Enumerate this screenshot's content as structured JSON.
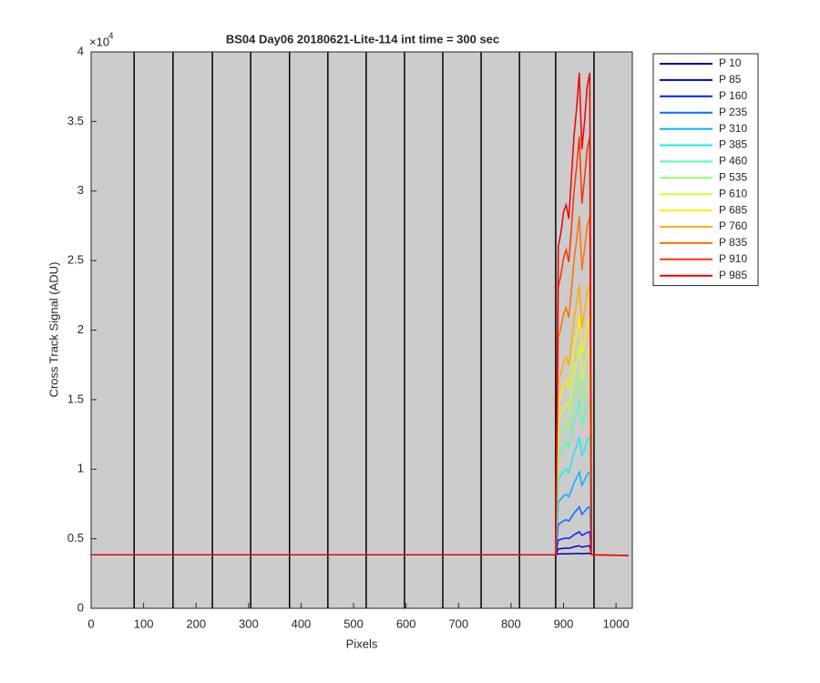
{
  "chart_data": {
    "type": "line",
    "title": "BS04 Day06 20180621-Lite-114 int time = 300 sec",
    "x_label": "Pixels",
    "y_label": "Cross Track Signal (ADU)",
    "y_multiplier": {
      "base": "×10",
      "exponent": "4"
    },
    "axes_color": "#cccccc",
    "legend": "outside-right",
    "xlim": [
      0,
      1031
    ],
    "ylim": [
      0,
      40000
    ],
    "xticks": [
      0,
      100,
      200,
      300,
      400,
      500,
      600,
      700,
      800,
      900,
      1000
    ],
    "yticks": [
      0,
      {
        "value": 5000,
        "label": "0.5"
      },
      {
        "value": 10000,
        "label": "1"
      },
      {
        "value": 15000,
        "label": "1.5"
      },
      {
        "value": 20000,
        "label": "2"
      },
      {
        "value": 25000,
        "label": "2.5"
      },
      {
        "value": 30000,
        "label": "3"
      },
      {
        "value": 35000,
        "label": "3.5"
      },
      {
        "value": 40000,
        "label": "4"
      }
    ],
    "vertical_lines": [
      82,
      156,
      231,
      304,
      378,
      451,
      524,
      597,
      670,
      743,
      816,
      885,
      958
    ],
    "x": [
      0,
      200,
      400,
      600,
      800,
      885,
      890,
      895,
      900,
      905,
      910,
      915,
      920,
      925,
      930,
      935,
      940,
      945,
      950,
      953,
      958,
      1024
    ],
    "series": [
      {
        "name": "P 10",
        "color": "#00008f",
        "values": [
          3850,
          3850,
          3850,
          3850,
          3850,
          3850,
          3910,
          3920,
          3920,
          3920,
          3920,
          3930,
          3940,
          3940,
          3950,
          3930,
          3940,
          3950,
          3950,
          3880,
          3850,
          3800
        ]
      },
      {
        "name": "P 85",
        "color": "#0000cf",
        "values": [
          3850,
          3850,
          3850,
          3850,
          3850,
          3850,
          4270,
          4290,
          4310,
          4330,
          4310,
          4360,
          4420,
          4460,
          4500,
          4400,
          4440,
          4480,
          4500,
          3880,
          3850,
          3800
        ]
      },
      {
        "name": "P 160",
        "color": "#0020ff",
        "values": [
          3850,
          3850,
          3850,
          3850,
          3850,
          3850,
          4910,
          4960,
          5020,
          5060,
          5010,
          5140,
          5290,
          5390,
          5500,
          5240,
          5340,
          5450,
          5500,
          3880,
          3850,
          3800
        ]
      },
      {
        "name": "P 235",
        "color": "#0070ff",
        "values": [
          3850,
          3850,
          3850,
          3850,
          3850,
          3850,
          6060,
          6160,
          6300,
          6370,
          6270,
          6540,
          6850,
          7060,
          7300,
          6750,
          6960,
          7200,
          7300,
          3880,
          3850,
          3800
        ]
      },
      {
        "name": "P 310",
        "color": "#00b0ff",
        "values": [
          3850,
          3850,
          3850,
          3850,
          3850,
          3850,
          7660,
          7840,
          8080,
          8190,
          8020,
          8490,
          9030,
          9380,
          9800,
          8850,
          9210,
          9620,
          9800,
          3880,
          3850,
          3800
        ]
      },
      {
        "name": "P 385",
        "color": "#10f0ef",
        "values": [
          3850,
          3850,
          3850,
          3850,
          3850,
          3850,
          9260,
          9510,
          9850,
          10020,
          9770,
          10440,
          11200,
          11710,
          12300,
          10950,
          11460,
          12050,
          12300,
          3880,
          3850,
          3800
        ]
      },
      {
        "name": "P 460",
        "color": "#50ffaf",
        "values": [
          3850,
          3850,
          3850,
          3850,
          3850,
          3850,
          10920,
          11250,
          11700,
          11920,
          11590,
          12470,
          13460,
          14130,
          14900,
          13130,
          13800,
          14570,
          14900,
          3880,
          3850,
          3800
        ]
      },
      {
        "name": "P 535",
        "color": "#8fff70",
        "values": [
          3850,
          3850,
          3850,
          3850,
          3850,
          3850,
          12140,
          12530,
          13050,
          13300,
          12920,
          13950,
          15120,
          15890,
          16800,
          14730,
          15510,
          16410,
          16800,
          3880,
          3850,
          3800
        ]
      },
      {
        "name": "P 610",
        "color": "#cfff30",
        "values": [
          3850,
          3850,
          3850,
          3850,
          3850,
          3850,
          13420,
          13870,
          14470,
          14760,
          14320,
          15510,
          16860,
          17750,
          18800,
          16410,
          17310,
          18350,
          18800,
          3880,
          3850,
          3800
        ]
      },
      {
        "name": "P 685",
        "color": "#ffef00",
        "values": [
          3850,
          3850,
          3850,
          3850,
          3850,
          3850,
          14830,
          15340,
          16030,
          16370,
          15860,
          17230,
          18770,
          19800,
          21000,
          18260,
          19290,
          20490,
          21000,
          3880,
          3850,
          3800
        ]
      },
      {
        "name": "P 760",
        "color": "#ffb000",
        "values": [
          3850,
          3850,
          3850,
          3850,
          3850,
          3850,
          16300,
          16880,
          17660,
          18050,
          17470,
          19020,
          20770,
          21940,
          23300,
          20190,
          21360,
          22720,
          23300,
          3880,
          3850,
          3800
        ]
      },
      {
        "name": "P 835",
        "color": "#ff7000",
        "values": [
          3850,
          3850,
          3850,
          3850,
          3850,
          3850,
          19430,
          20170,
          21140,
          21630,
          20900,
          22840,
          25040,
          26500,
          28200,
          24300,
          25770,
          27470,
          28200,
          3880,
          3850,
          3800
        ]
      },
      {
        "name": "P 910",
        "color": "#ff3000",
        "values": [
          3850,
          3850,
          3850,
          3850,
          3850,
          3850,
          23080,
          23980,
          25190,
          25790,
          24890,
          27290,
          29990,
          31800,
          33900,
          29090,
          30900,
          33000,
          33900,
          3880,
          3850,
          3800
        ]
      },
      {
        "name": "P 985",
        "color": "#ef0000",
        "values": [
          3850,
          3850,
          3850,
          3850,
          3850,
          3850,
          26000,
          27000,
          28500,
          29000,
          28000,
          31000,
          34000,
          36000,
          38500,
          33000,
          35000,
          37500,
          38500,
          3880,
          3850,
          3800
        ]
      }
    ]
  }
}
